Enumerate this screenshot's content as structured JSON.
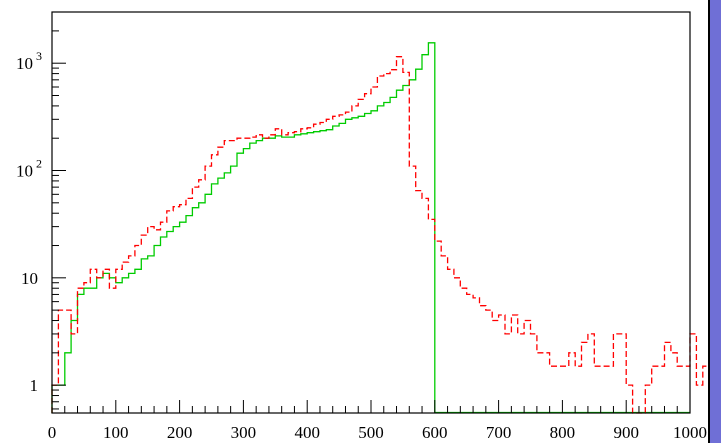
{
  "chart_data": {
    "type": "line",
    "style": "step histogram",
    "title": "",
    "xlabel": "",
    "ylabel": "",
    "xlim": [
      0,
      1000
    ],
    "ylim": [
      0.55,
      3000
    ],
    "yscale": "log",
    "grid": false,
    "legend": "none",
    "x_ticks": [
      "0",
      "100",
      "200",
      "300",
      "400",
      "500",
      "600",
      "700",
      "800",
      "900",
      "1000"
    ],
    "y_ticks": [
      {
        "value": 1,
        "base": "1",
        "exp": ""
      },
      {
        "value": 10,
        "base": "10",
        "exp": ""
      },
      {
        "value": 100,
        "base": "10",
        "exp": "2"
      },
      {
        "value": 1000,
        "base": "10",
        "exp": "3"
      }
    ],
    "bin_width": 10,
    "series": [
      {
        "color": "#00cc00",
        "line_style": "solid",
        "values": [
          1,
          1,
          2,
          4,
          7,
          8,
          8,
          10,
          11,
          10,
          9,
          10,
          11,
          12,
          15,
          16,
          20,
          24,
          27,
          30,
          33,
          38,
          45,
          50,
          60,
          75,
          85,
          95,
          110,
          145,
          160,
          180,
          190,
          200,
          200,
          210,
          205,
          205,
          215,
          220,
          225,
          230,
          235,
          240,
          260,
          275,
          300,
          310,
          320,
          340,
          360,
          400,
          430,
          480,
          560,
          620,
          700,
          880,
          1200,
          1550
        ]
      },
      {
        "color": "#ff0000",
        "line_style": "dashed",
        "values": [
          1,
          5,
          5,
          3,
          8,
          9,
          12,
          10,
          12,
          8,
          12,
          14,
          16,
          20,
          25,
          30,
          28,
          33,
          42,
          46,
          48,
          55,
          70,
          82,
          110,
          140,
          165,
          190,
          190,
          200,
          200,
          205,
          215,
          200,
          215,
          245,
          215,
          225,
          230,
          245,
          250,
          270,
          280,
          300,
          320,
          330,
          350,
          400,
          460,
          520,
          600,
          760,
          800,
          870,
          1150,
          820,
          110,
          65,
          55,
          35,
          22,
          16,
          12,
          10,
          8,
          7,
          6.5,
          5.5,
          5,
          4,
          4.5,
          3,
          4.5,
          3,
          4,
          3,
          2,
          2,
          1.5,
          1.5,
          1.5,
          2,
          1.5,
          2.5,
          3,
          1.5,
          1.5,
          1.5,
          3,
          3,
          1,
          0.5,
          0.5,
          1,
          1.5,
          1.5,
          2.5,
          2,
          1.5,
          1.5,
          3,
          1,
          1.5,
          0.5,
          1.5,
          2,
          1.5,
          1,
          1,
          1.5,
          0.5,
          1.5,
          1.5,
          1,
          0.5,
          1,
          2,
          1.5,
          1.5,
          2,
          1.5,
          0.5,
          1.5,
          2,
          1.5,
          1,
          0.5,
          1,
          1.5,
          1,
          1,
          1.5,
          1,
          1.5,
          1,
          0.5,
          0.5
        ]
      }
    ]
  }
}
